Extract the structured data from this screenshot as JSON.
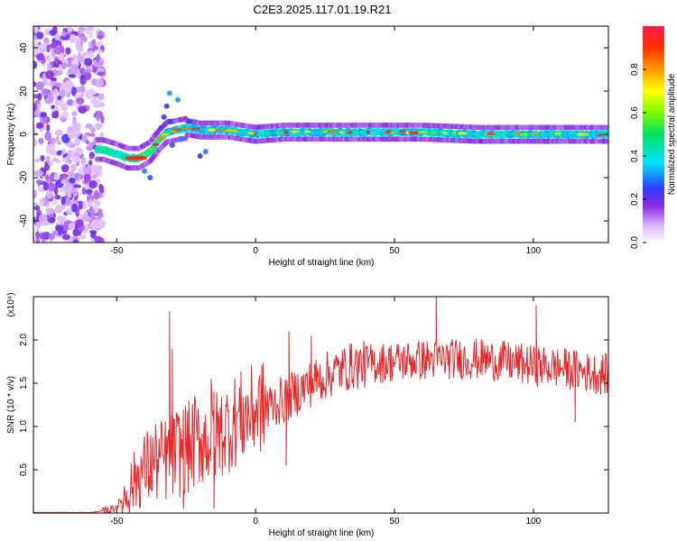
{
  "figure_title": "C2E3.2025.117.01.19.R21",
  "colors": {
    "line": "#e8282a",
    "frame": "#000000",
    "background": "#ffffff"
  },
  "chart_data": [
    {
      "type": "heatmap",
      "xlabel": "Height of straight line (km)",
      "ylabel": "Frequency (Hz)",
      "xlim": [
        -80,
        127
      ],
      "ylim": [
        -50,
        50
      ],
      "x_ticks": [
        -50,
        0,
        50,
        100
      ],
      "x_tick_labels": [
        "-50",
        "0",
        "50",
        "100"
      ],
      "y_ticks": [
        -40,
        -20,
        0,
        20,
        40
      ],
      "y_tick_labels": [
        "-40",
        "-20",
        "0",
        "20",
        "40"
      ],
      "colorbar": {
        "label": "Normalized spectral amplitude",
        "range": [
          0,
          1
        ],
        "ticks": [
          0,
          0.2,
          0.4,
          0.6,
          0.8
        ],
        "tick_labels": [
          "0.0",
          "0.2",
          "0.4",
          "0.6",
          "0.8"
        ],
        "colormap": "rainbow (white-violet-blue-cyan-green-yellow-orange-red)"
      },
      "ridge_center_hz": {
        "x_km": [
          -55,
          -50,
          -46,
          -42,
          -38,
          -35,
          -32,
          -28,
          -24,
          -20,
          -15,
          -10,
          -5,
          0,
          10,
          20,
          40,
          60,
          80,
          100,
          127
        ],
        "freq_hz": [
          -7,
          -9,
          -11,
          -11,
          -8,
          -3,
          1,
          2,
          3,
          2,
          2,
          2,
          1,
          0,
          1,
          1,
          1,
          1,
          0,
          0,
          0
        ]
      },
      "noise_region_km": [
        -80,
        -57
      ]
    },
    {
      "type": "line",
      "xlabel": "Height of straight line (km)",
      "ylabel": "SNR (10 * v/v)",
      "y_scale_note": "(x10⁴)",
      "xlim": [
        -80,
        127
      ],
      "ylim": [
        0,
        2.5
      ],
      "x_ticks": [
        -50,
        0,
        50,
        100
      ],
      "x_tick_labels": [
        "-50",
        "0",
        "50",
        "100"
      ],
      "y_ticks": [
        0.5,
        1.0,
        1.5,
        2.0
      ],
      "y_tick_labels": [
        "0.5",
        "1.0",
        "1.5",
        "2.0"
      ],
      "series": [
        {
          "trend_x": [
            -80,
            -60,
            -55,
            -52,
            -50,
            -48,
            -46,
            -44,
            -42,
            -40,
            -38,
            -36,
            -34,
            -32,
            -30,
            -28,
            -26,
            -24,
            -22,
            -20,
            -18,
            -16,
            -14,
            -12,
            -10,
            -8,
            -6,
            -4,
            -2,
            0,
            5,
            10,
            15,
            20,
            25,
            30,
            35,
            40,
            50,
            60,
            70,
            80,
            90,
            100,
            110,
            120,
            127
          ],
          "trend_y": [
            0.0,
            0.0,
            0.02,
            0.04,
            0.08,
            0.15,
            0.25,
            0.35,
            0.45,
            0.5,
            0.55,
            0.6,
            0.6,
            0.62,
            0.65,
            0.7,
            0.75,
            0.75,
            0.8,
            0.85,
            0.85,
            0.85,
            0.9,
            0.95,
            1.0,
            1.05,
            1.1,
            1.12,
            1.15,
            1.2,
            1.25,
            1.3,
            1.4,
            1.5,
            1.58,
            1.65,
            1.7,
            1.72,
            1.75,
            1.77,
            1.78,
            1.78,
            1.75,
            1.7,
            1.68,
            1.62,
            1.6
          ],
          "spikes": [
            {
              "x": -31,
              "y": 2.33
            },
            {
              "x": -30,
              "y": 1.9
            },
            {
              "x": -22,
              "y": 1.35
            },
            {
              "x": -16,
              "y": 1.55
            },
            {
              "x": -15,
              "y": 1.4
            },
            {
              "x": 12,
              "y": 2.1
            },
            {
              "x": 20,
              "y": 2.05
            },
            {
              "x": 65,
              "y": 2.55
            },
            {
              "x": 101,
              "y": 2.4
            },
            {
              "x": 127,
              "y": 2.1
            }
          ],
          "dips": [
            {
              "x": -26,
              "y": 0.05
            },
            {
              "x": -15,
              "y": 0.05
            },
            {
              "x": 11,
              "y": 0.55
            },
            {
              "x": 115,
              "y": 1.05
            }
          ]
        }
      ]
    }
  ]
}
